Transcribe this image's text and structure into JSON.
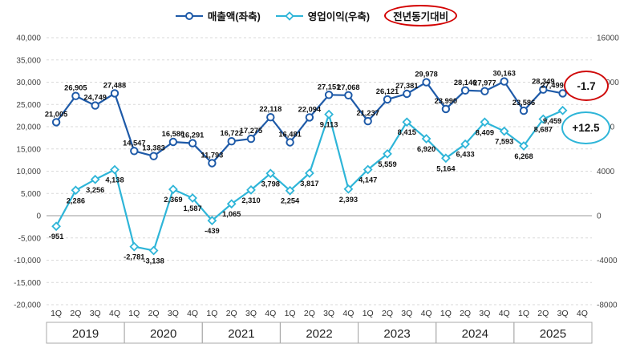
{
  "legend": {
    "revenue": {
      "label": "매출액(좌축)"
    },
    "profit": {
      "label": "영업이익(우축)"
    },
    "yoy": {
      "label": "전년동기대비"
    }
  },
  "callouts": {
    "revenue_yoy": "-1.7",
    "profit_yoy": "+12.5"
  },
  "colors": {
    "revenue": "#1e5aa8",
    "profit": "#2eb5d8",
    "red_accent": "#cf0a0a"
  },
  "chart_data": {
    "type": "line",
    "title": "",
    "x_quarters": [
      "1Q",
      "2Q",
      "3Q",
      "4Q",
      "1Q",
      "2Q",
      "3Q",
      "4Q",
      "1Q",
      "2Q",
      "3Q",
      "4Q",
      "1Q",
      "2Q",
      "3Q",
      "4Q",
      "1Q",
      "2Q",
      "3Q",
      "4Q",
      "1Q",
      "2Q",
      "3Q",
      "4Q",
      "1Q",
      "2Q",
      "3Q",
      "4Q"
    ],
    "years": [
      "2019",
      "2020",
      "2021",
      "2022",
      "2023",
      "2024",
      "2025"
    ],
    "series": [
      {
        "name": "매출액(좌축)",
        "axis": "left",
        "color": "#1e5aa8",
        "marker": "circle",
        "label_pos": "above",
        "values": [
          21005,
          26905,
          24749,
          27488,
          14547,
          13383,
          16580,
          16291,
          11793,
          16722,
          17275,
          22118,
          16481,
          22094,
          27151,
          27068,
          21237,
          26121,
          27381,
          29978,
          23990,
          28146,
          27977,
          30163,
          23586,
          28349,
          27499
        ]
      },
      {
        "name": "영업이익(우축)",
        "axis": "right",
        "color": "#2eb5d8",
        "marker": "diamond",
        "label_pos": "below",
        "values": [
          -951,
          2286,
          3256,
          4138,
          -2781,
          -3138,
          2369,
          1587,
          -439,
          1065,
          2310,
          3798,
          2254,
          3817,
          9113,
          2393,
          4147,
          5559,
          8415,
          6920,
          5164,
          6433,
          8409,
          7593,
          6268,
          8687,
          9459
        ]
      }
    ],
    "left_axis": {
      "min": -20000,
      "max": 40000,
      "step": 5000,
      "ticks": [
        "40,000",
        "35,000",
        "30,000",
        "25,000",
        "20,000",
        "15,000",
        "10,000",
        "5,000",
        "0",
        "-5,000",
        "-10,000",
        "-15,000",
        "-20,000"
      ]
    },
    "right_axis": {
      "min": -8000,
      "max": 16000,
      "step": 4000,
      "ticks": [
        "16000",
        "12000",
        "8000",
        "4000",
        "0",
        "-4000",
        "-8000"
      ]
    },
    "grid": "horizontal-dashed",
    "legend_position": "top-center"
  }
}
